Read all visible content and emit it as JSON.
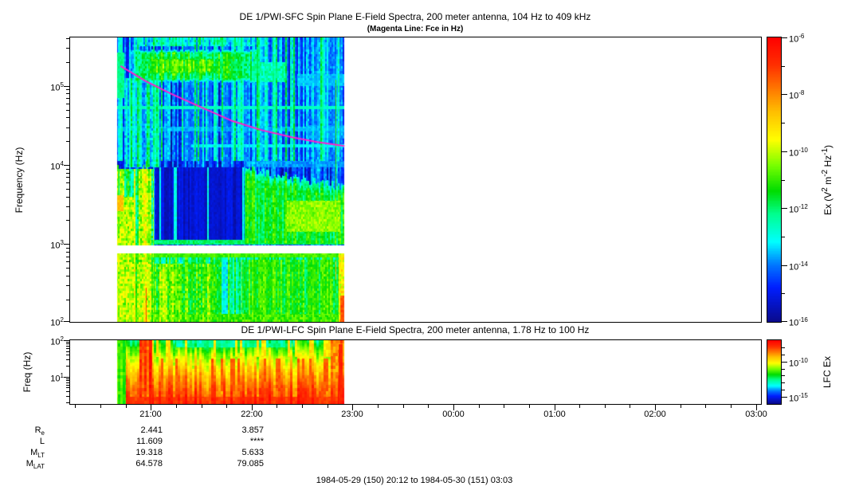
{
  "figure": {
    "background": "#ffffff",
    "caption": "1984-05-29 (150) 20:12 to 1984-05-30 (151) 03:03"
  },
  "sfc": {
    "title": "DE 1/PWI-SFC  Spin Plane E-Field Spectra, 200 meter antenna, 104 Hz to 409 kHz",
    "subtitle": "(Magenta Line: Fce in Hz)",
    "ylabel": "Frequency (Hz)",
    "colorbar_label": {
      "p1": "Ex (V",
      "e1": "2",
      "p2": " m",
      "e2": "-2",
      "p3": " Hz",
      "e3": "-1",
      "p4": ")"
    }
  },
  "lfc": {
    "title": "DE 1/PWI-LFC  Spin Plane E-Field Spectra, 200 meter antenna, 1.78 Hz to 100 Hz",
    "ylabel": "Freq (Hz)",
    "colorbar_label": "LFC Ex"
  },
  "ephemeris": {
    "rows": [
      {
        "label": {
          "base": "R",
          "sub": "e"
        },
        "values": [
          "2.441",
          "3.857"
        ]
      },
      {
        "label": {
          "base": "L",
          "sub": ""
        },
        "values": [
          "11.609",
          "****"
        ]
      },
      {
        "label": {
          "base": "M",
          "sub": "LT"
        },
        "values": [
          "19.318",
          "5.633"
        ]
      },
      {
        "label": {
          "base": "M",
          "sub": "LAT"
        },
        "values": [
          "64.578",
          "79.085"
        ]
      }
    ]
  },
  "chart_data": {
    "type": "heatmap",
    "subtype": "spectrogram",
    "time_axis": {
      "start": "1984-05-29 20:12",
      "end": "1984-05-30 03:03",
      "hours": [
        20.2,
        27.05
      ],
      "major_ticks": [
        {
          "label": "21:00",
          "t": 21
        },
        {
          "label": "22:00",
          "t": 22
        },
        {
          "label": "23:00",
          "t": 23
        },
        {
          "label": "00:00",
          "t": 24
        },
        {
          "label": "01:00",
          "t": 25
        },
        {
          "label": "02:00",
          "t": 26
        },
        {
          "label": "03:00",
          "t": 27
        }
      ],
      "minor_step_hours": 0.25
    },
    "colormap_stops": [
      [
        0.0,
        [
          10,
          10,
          140
        ]
      ],
      [
        0.12,
        [
          0,
          30,
          255
        ]
      ],
      [
        0.2,
        [
          0,
          120,
          255
        ]
      ],
      [
        0.28,
        [
          0,
          255,
          255
        ]
      ],
      [
        0.38,
        [
          0,
          255,
          140
        ]
      ],
      [
        0.46,
        [
          0,
          220,
          0
        ]
      ],
      [
        0.55,
        [
          120,
          255,
          0
        ]
      ],
      [
        0.64,
        [
          255,
          255,
          0
        ]
      ],
      [
        0.74,
        [
          255,
          190,
          0
        ]
      ],
      [
        0.82,
        [
          255,
          120,
          0
        ]
      ],
      [
        0.9,
        [
          255,
          50,
          0
        ]
      ],
      [
        1.0,
        [
          255,
          0,
          0
        ]
      ]
    ],
    "panels": [
      {
        "id": "sfc",
        "freq_range_hz": [
          104,
          409000
        ],
        "lf_range": [
          2.017,
          5.6117
        ],
        "data_time_hours": [
          20.665,
          22.92
        ],
        "gap_lf": [
          2.88,
          2.98
        ],
        "vrange": [
          -16,
          -6
        ],
        "binx": 2,
        "biny": 3,
        "yticks": [
          {
            "base": "10",
            "exp": "2",
            "lf": 2
          },
          {
            "base": "10",
            "exp": "3",
            "lf": 3
          },
          {
            "base": "10",
            "exp": "4",
            "lf": 4
          },
          {
            "base": "10",
            "exp": "5",
            "lf": 5
          }
        ],
        "cbticks_major": [
          {
            "base": "10",
            "exp": "-6",
            "v": -6
          },
          {
            "base": "10",
            "exp": "-8",
            "v": -8
          },
          {
            "base": "10",
            "exp": "-10",
            "v": -10
          },
          {
            "base": "10",
            "exp": "-12",
            "v": -12
          },
          {
            "base": "10",
            "exp": "-14",
            "v": -14
          },
          {
            "base": "10",
            "exp": "-16",
            "v": -16
          }
        ],
        "cbticks_minor": [
          -7,
          -9,
          -11,
          -13,
          -15
        ],
        "fce_line": {
          "color": "#ff1ecc",
          "width": 2,
          "points_t": [
            20.7,
            20.95,
            21.2,
            21.5,
            21.8,
            22.1,
            22.4,
            22.65,
            22.92
          ],
          "points_lf": [
            5.25,
            5.06,
            4.9,
            4.73,
            4.56,
            4.44,
            4.35,
            4.29,
            4.24
          ]
        },
        "zones": [
          {
            "k": "rect",
            "m": "set",
            "t": [
              20.665,
              22.92
            ],
            "lf": [
              2.017,
              5.612
            ],
            "v": -14.6,
            "cn": 0.7,
            "col": 1.1,
            "ch": 0
          },
          {
            "k": "rect",
            "m": "set",
            "t": [
              20.665,
              22.92
            ],
            "lf": [
              2.017,
              2.88
            ],
            "v": -12.0,
            "cn": 1.1,
            "col": 1.3,
            "ch": 2
          },
          {
            "k": "rect",
            "t": [
              20.665,
              22.92
            ],
            "lf": [
              4.05,
              5.612
            ],
            "v": -14.0,
            "cn": 0.9,
            "col": 2.4,
            "ch": 1
          },
          {
            "k": "rect",
            "t": [
              20.85,
              22.15
            ],
            "lf": [
              5.5,
              5.612
            ],
            "v": -13.0,
            "cn": 1.4,
            "col": 1.0,
            "ch": 3
          },
          {
            "k": "rect",
            "t": [
              20.7,
              21.15
            ],
            "lf": [
              3.97,
              5.1
            ],
            "v": -13.6,
            "cn": 1.0,
            "col": 2.0,
            "ch": 4
          },
          {
            "k": "rect",
            "t": [
              20.76,
              22.12
            ],
            "lf": [
              5.04,
              5.46
            ],
            "v": -11.8,
            "cn": 1.3,
            "col": 1.0,
            "ch": 5,
            "soft": 0.15
          },
          {
            "k": "rect",
            "t": [
              20.85,
              21.8
            ],
            "lf": [
              5.12,
              5.38
            ],
            "v": -11.0,
            "cn": 1.2,
            "col": 0.8,
            "ch": 6,
            "soft": 0.2
          },
          {
            "k": "rect",
            "t": [
              22.0,
              22.35
            ],
            "lf": [
              5.05,
              5.3
            ],
            "v": -12.6,
            "cn": 1.2,
            "ch": 7
          },
          {
            "k": "rect",
            "t": [
              20.665,
              20.74
            ],
            "lf": [
              4.85,
              5.42
            ],
            "v": -12.2,
            "cn": 0.5,
            "ch": 8
          },
          {
            "k": "rect",
            "t": [
              20.665,
              22.92
            ],
            "lf": [
              4.71,
              4.75
            ],
            "v": -12.7,
            "cn": 0.4,
            "ch": 9
          },
          {
            "k": "rect",
            "t": [
              20.665,
              22.92
            ],
            "lf": [
              4.42,
              4.48
            ],
            "v": -13.7,
            "cn": 0.5,
            "ch": 10
          },
          {
            "k": "rect",
            "t": [
              21.4,
              22.92
            ],
            "lf": [
              4.225,
              4.265
            ],
            "v": -13.3,
            "cn": 0.4,
            "ch": 11
          },
          {
            "k": "rect",
            "t": [
              22.45,
              22.92
            ],
            "lf": [
              5.0,
              5.15
            ],
            "v": -13.6,
            "cn": 0.4,
            "ch": 12
          },
          {
            "k": "rect",
            "t": [
              22.55,
              22.92
            ],
            "lf": [
              4.33,
              4.5
            ],
            "v": -13.8,
            "cn": 0.4,
            "ch": 13
          },
          {
            "k": "rect",
            "m": "set",
            "t": [
              21.05,
              21.92
            ],
            "lf": [
              3.0,
              3.97
            ],
            "v": -15.3,
            "cn": 0.35,
            "col": 0.4,
            "ch": 14
          },
          {
            "k": "stripes",
            "t": [
              21.05,
              21.92
            ],
            "lf": [
              3.0,
              3.97
            ],
            "v": -13.0,
            "cn": 0.6,
            "d": 0.13,
            "ch": 15
          },
          {
            "k": "rect",
            "m": "set",
            "t": [
              21.95,
              22.25
            ],
            "lf": [
              3.0,
              3.55
            ],
            "v": -13.5,
            "cn": 0.9,
            "col": 0.9,
            "ch": 16
          },
          {
            "k": "funnel",
            "t": [
              21.93,
              22.92
            ],
            "top": [
              3.95,
              3.72
            ],
            "lf0": 3.0,
            "v": -11.5,
            "cn": 1.0,
            "col": 0.8,
            "ch": 17
          },
          {
            "k": "rect",
            "t": [
              22.35,
              22.88
            ],
            "lf": [
              3.15,
              3.55
            ],
            "v": -10.4,
            "cn": 1.0,
            "ch": 18
          },
          {
            "k": "rect",
            "t": [
              21.95,
              22.92
            ],
            "lf": [
              3.97,
              4.05
            ],
            "v": -13.8,
            "cn": 0.7,
            "ch": 19
          },
          {
            "k": "rect",
            "t": [
              20.665,
              21.03
            ],
            "lf": [
              2.017,
              3.95
            ],
            "v": -11.2,
            "cn": 1.6,
            "col": 1.6,
            "ch": 20
          },
          {
            "k": "rect",
            "t": [
              20.665,
              20.85
            ],
            "lf": [
              2.05,
              3.6
            ],
            "v": -10.3,
            "cn": 1.8,
            "ch": 21
          },
          {
            "k": "rect",
            "t": [
              20.665,
              20.73
            ],
            "lf": [
              3.42,
              3.62
            ],
            "v": -8.7,
            "cn": 0.6,
            "ch": 22
          },
          {
            "k": "vline",
            "t0": 20.675,
            "w": 0.018,
            "lf": [
              2.017,
              4.0
            ],
            "v": -11.0,
            "cn": 0.5,
            "ch": 23
          },
          {
            "k": "rect",
            "t": [
              20.665,
              21.65
            ],
            "lf": [
              2.017,
              2.75
            ],
            "v": -10.9,
            "cn": 1.5,
            "col": 1.0,
            "ch": 24
          },
          {
            "k": "rect",
            "t": [
              20.665,
              22.92
            ],
            "lf": [
              2.835,
              2.88
            ],
            "v": -10.9,
            "cn": 0.7,
            "ch": 25
          },
          {
            "k": "rect",
            "t": [
              20.665,
              22.92
            ],
            "lf": [
              2.017,
              2.12
            ],
            "v": -11.0,
            "cn": 1.2,
            "ch": 26
          },
          {
            "k": "rect",
            "t": [
              21.9,
              22.92
            ],
            "lf": [
              2.1,
              2.8
            ],
            "v": -11.4,
            "cn": 1.0,
            "col": 0.8,
            "ch": 27
          },
          {
            "k": "rect",
            "t": [
              20.665,
              22.92
            ],
            "lf": [
              2.99,
              3.05
            ],
            "v": -12.0,
            "cn": 0.8,
            "ch": 28
          },
          {
            "k": "vline",
            "t0": 20.93,
            "w": 0.012,
            "lf": [
              2.017,
              4.0
            ],
            "v": -10.6,
            "cn": 0.6,
            "ch": 29
          },
          {
            "k": "vline",
            "t0": 20.955,
            "w": 0.014,
            "lf": [
              2.017,
              2.45
            ],
            "v": -7.2,
            "cn": 0.5,
            "ch": 30
          },
          {
            "k": "vline",
            "t0": 20.955,
            "w": 0.014,
            "lf": [
              2.45,
              4.05
            ],
            "v": -10.8,
            "cn": 0.6,
            "ch": 31
          },
          {
            "k": "vline",
            "t0": 20.985,
            "w": 0.01,
            "lf": [
              2.017,
              3.9
            ],
            "v": -11.0,
            "cn": 0.6,
            "ch": 32
          },
          {
            "k": "vline",
            "t0": 22.835,
            "w": 0.012,
            "lf": [
              2.017,
              5.08
            ],
            "v": -11.0,
            "cn": 0.5,
            "ch": 33
          },
          {
            "k": "vline",
            "t0": 22.835,
            "w": 0.012,
            "lf": [
              2.55,
              2.78
            ],
            "v": -8.6,
            "cn": 0.4,
            "ch": 34
          },
          {
            "k": "rect",
            "t": [
              22.86,
              22.92
            ],
            "lf": [
              2.017,
              2.9
            ],
            "v": -9.3,
            "cn": 1.5,
            "col": 0.8,
            "ch": 35
          },
          {
            "k": "rect",
            "t": [
              22.88,
              22.92
            ],
            "lf": [
              2.017,
              2.35
            ],
            "v": -7.4,
            "cn": 0.8,
            "ch": 36
          }
        ]
      },
      {
        "id": "lfc",
        "freq_range_hz": [
          1.78,
          100
        ],
        "lf_range": [
          0.2504,
          2.0
        ],
        "data_time_hours": [
          20.665,
          22.92
        ],
        "vrange": [
          -16,
          -7
        ],
        "binx": 3,
        "biny": 4,
        "yticks": [
          {
            "base": "10",
            "exp": "1",
            "lf": 1
          },
          {
            "base": "10",
            "exp": "2",
            "lf": 2
          }
        ],
        "cbticks_major": [
          {
            "base": "10",
            "exp": "-10",
            "v": -10
          },
          {
            "base": "10",
            "exp": "-15",
            "v": -15
          }
        ],
        "cbticks_minor": [
          -8,
          -9,
          -11,
          -12,
          -13,
          -14
        ],
        "zones": [
          {
            "k": "vgrad",
            "m": "set",
            "t": [
              20.665,
              22.92
            ],
            "stops": [
              [
                2.0,
                -12.4
              ],
              [
                1.8,
                -11.6
              ],
              [
                1.55,
                -10.6
              ],
              [
                1.25,
                -9.8
              ],
              [
                0.95,
                -9.0
              ],
              [
                0.65,
                -8.4
              ],
              [
                0.25,
                -7.9
              ]
            ],
            "cn": 0.6,
            "col": 0.8,
            "ch": 0
          },
          {
            "k": "rect",
            "m": "set",
            "t": [
              21.25,
              22.4
            ],
            "lf": [
              1.8,
              2.0
            ],
            "v": -12.6,
            "cn": 0.7,
            "col": 0.5,
            "ch": 1
          },
          {
            "k": "stripes",
            "t": [
              20.85,
              22.8
            ],
            "lf": [
              1.55,
              2.0
            ],
            "v": -9.9,
            "cn": 0.8,
            "d": 0.22,
            "ch": 2
          },
          {
            "k": "stripes",
            "t": [
              21.05,
              22.8
            ],
            "lf": [
              0.6,
              1.5
            ],
            "v": -8.3,
            "cn": 0.5,
            "d": 0.16,
            "ch": 3
          },
          {
            "k": "rect",
            "m": "set",
            "t": [
              20.665,
              20.75
            ],
            "lf": [
              0.25,
              2.0
            ],
            "v": -11.2,
            "cn": 0.7,
            "col": 0.6,
            "ch": 4
          },
          {
            "k": "rect",
            "m": "set",
            "t": [
              20.89,
              21.01
            ],
            "lf": [
              0.25,
              2.0
            ],
            "v": -7.9,
            "cn": 0.9,
            "col": 0.8,
            "ch": 5
          },
          {
            "k": "rect",
            "t": [
              20.75,
              22.92
            ],
            "lf": [
              0.25,
              0.45
            ],
            "v": -8.0,
            "cn": 0.5,
            "ch": 6
          },
          {
            "k": "rect",
            "t": [
              22.78,
              22.92
            ],
            "lf": [
              0.25,
              2.0
            ],
            "v": -8.9,
            "cn": 1.2,
            "col": 0.6,
            "ch": 7
          },
          {
            "k": "rect",
            "m": "set",
            "t": [
              22.86,
              22.9
            ],
            "lf": [
              0.25,
              1.9
            ],
            "v": -7.6,
            "cn": 0.5,
            "ch": 8
          }
        ]
      }
    ]
  }
}
